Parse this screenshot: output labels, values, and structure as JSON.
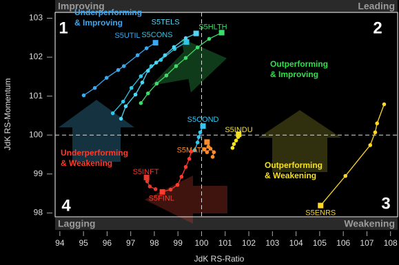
{
  "chart_data": {
    "type": "rrg",
    "x_label": "JdK RS-Ratio",
    "y_label": "JdK RS-Momentum",
    "xlim": [
      93.8,
      108.3
    ],
    "ylim": [
      97.9,
      103.15
    ],
    "xticks": [
      94,
      95,
      96,
      97,
      98,
      99,
      100,
      101,
      102,
      103,
      104,
      105,
      106,
      107,
      108
    ],
    "yticks": [
      98,
      99,
      100,
      101,
      102,
      103
    ],
    "reference_lines": {
      "x": 100,
      "y": 100
    },
    "corners": {
      "top_left": "Improving",
      "top_right": "Leading",
      "bottom_left": "Lagging",
      "bottom_right": "Weakening"
    },
    "quadrants": [
      {
        "number": "1",
        "lines": [
          "Underperforming",
          "& Improving"
        ],
        "color": "#3aa9f2"
      },
      {
        "number": "2",
        "lines": [
          "Outperforming",
          "& Improving"
        ],
        "color": "#2ee04a"
      },
      {
        "number": "3",
        "lines": [
          "Outperforming",
          "& Weakening"
        ],
        "color": "#f7e11f"
      },
      {
        "number": "4",
        "lines": [
          "Underperforming",
          "& Weakening"
        ],
        "color": "#ff3a2a"
      }
    ],
    "series": [
      {
        "name": "S5UTIL",
        "color": "#3aa9f2",
        "x": [
          95.01,
          95.48,
          95.98,
          96.47,
          96.71,
          97.29,
          97.67,
          98.05
        ],
        "y": [
          101.02,
          101.21,
          101.47,
          101.67,
          101.77,
          102.05,
          102.23,
          102.37
        ]
      },
      {
        "name": "S5CONS",
        "color": "#2fc6e8",
        "x": [
          96.24,
          96.68,
          97.03,
          97.43,
          97.87,
          98.28,
          98.86,
          99.36
        ],
        "y": [
          100.56,
          100.86,
          101.21,
          101.51,
          101.77,
          101.93,
          102.21,
          102.39
        ]
      },
      {
        "name": "S5TELS",
        "color": "#4fd6f5",
        "x": [
          96.59,
          96.79,
          97.2,
          97.49,
          97.73,
          98.08,
          98.45,
          98.83,
          99.33,
          99.77
        ],
        "y": [
          100.42,
          100.74,
          101.04,
          101.35,
          101.65,
          101.86,
          102.05,
          102.26,
          102.49,
          102.61
        ]
      },
      {
        "name": "S5HLTH",
        "color": "#3ddc6a",
        "x": [
          97.43,
          97.73,
          98.1,
          98.51,
          98.92,
          99.33,
          99.83,
          100.32,
          100.85
        ],
        "y": [
          100.82,
          101.07,
          101.32,
          101.53,
          101.77,
          101.98,
          102.25,
          102.47,
          102.63
        ]
      },
      {
        "name": "S5COND",
        "color": "#35c7f0",
        "x": [
          99.71,
          99.83,
          99.88,
          99.94,
          100.06
        ],
        "y": [
          99.61,
          99.81,
          99.95,
          100.07,
          100.23
        ]
      },
      {
        "name": "S5INDU",
        "color": "#f7e11f",
        "x": [
          101.31,
          101.37,
          101.46,
          101.55,
          101.57
        ],
        "y": [
          99.67,
          99.77,
          99.86,
          99.95,
          100.02
        ]
      },
      {
        "name": "S5MATR",
        "color": "#ff8c2a",
        "x": [
          100.47,
          100.52,
          100.38,
          100.23,
          100.12,
          100.29,
          100.23
        ],
        "y": [
          99.44,
          99.56,
          99.65,
          99.56,
          99.63,
          99.7,
          99.82
        ]
      },
      {
        "name": "S5FINL",
        "color": "#ff3a2a",
        "x": [
          99.56,
          99.48,
          99.33,
          99.15,
          98.98,
          98.69,
          98.34
        ],
        "y": [
          99.58,
          99.39,
          99.18,
          98.93,
          98.72,
          98.6,
          98.54
        ]
      },
      {
        "name": "S5INFT",
        "color": "#e8372c",
        "x": [
          98.05,
          97.81,
          97.7,
          97.67
        ],
        "y": [
          98.61,
          98.68,
          98.81,
          98.91
        ]
      },
      {
        "name": "S5ENRS",
        "color": "#ffd71f",
        "x": [
          107.73,
          107.43,
          107.35,
          107.14,
          106.09,
          105.04
        ],
        "y": [
          100.79,
          100.3,
          100.07,
          99.74,
          98.95,
          98.19
        ]
      }
    ]
  }
}
